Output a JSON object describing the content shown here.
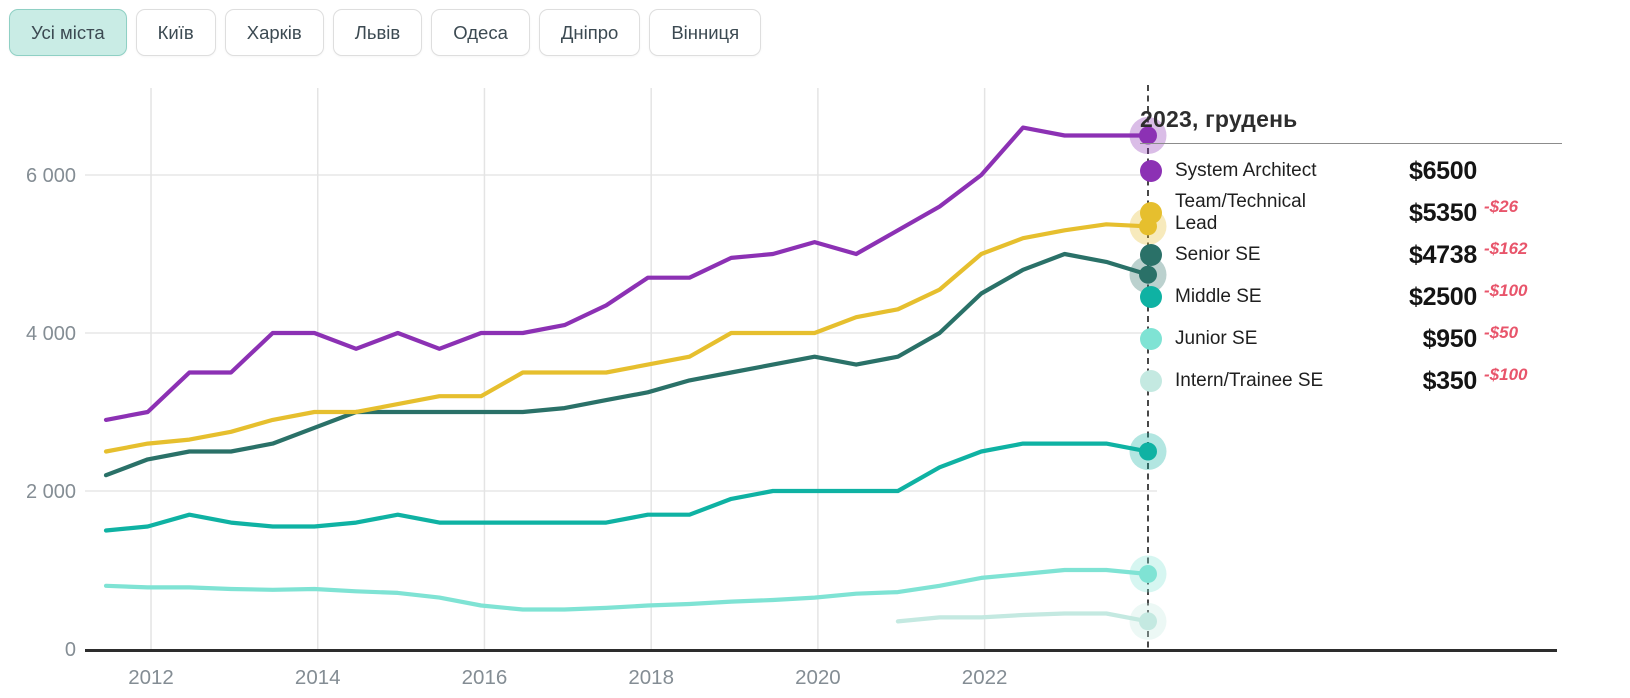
{
  "tabs": {
    "items": [
      {
        "label": "Усі міста",
        "selected": true
      },
      {
        "label": "Київ",
        "selected": false
      },
      {
        "label": "Харків",
        "selected": false
      },
      {
        "label": "Львів",
        "selected": false
      },
      {
        "label": "Одеса",
        "selected": false
      },
      {
        "label": "Дніпро",
        "selected": false
      },
      {
        "label": "Вінниця",
        "selected": false
      }
    ]
  },
  "legend": {
    "title": "2023, грудень",
    "items": [
      {
        "name": "System Architect",
        "value": "$6500",
        "delta": "",
        "color": "#8c31b4"
      },
      {
        "name": "Team/Technical Lead",
        "value": "$5350",
        "delta": "-$26",
        "color": "#e6bf2e"
      },
      {
        "name": "Senior SE",
        "value": "$4738",
        "delta": "-$162",
        "color": "#2a7168"
      },
      {
        "name": "Middle SE",
        "value": "$2500",
        "delta": "-$100",
        "color": "#0fb2a3"
      },
      {
        "name": "Junior SE",
        "value": "$950",
        "delta": "-$50",
        "color": "#7fe3d4"
      },
      {
        "name": "Intern/Trainee SE",
        "value": "$350",
        "delta": "-$100",
        "color": "#c4e9e1"
      }
    ]
  },
  "chart_data": {
    "type": "line",
    "title": "",
    "xlabel": "",
    "ylabel": "",
    "ylim": [
      0,
      7000
    ],
    "grid": true,
    "legend_position": "right",
    "cursor_label": "2023, грудень",
    "categories": [
      "2011-06",
      "2011-12",
      "2012-06",
      "2012-12",
      "2013-06",
      "2013-12",
      "2014-06",
      "2014-12",
      "2015-06",
      "2015-12",
      "2016-06",
      "2016-12",
      "2017-06",
      "2017-12",
      "2018-06",
      "2018-12",
      "2019-06",
      "2019-12",
      "2020-06",
      "2020-12",
      "2021-06",
      "2021-12",
      "2022-06",
      "2022-12",
      "2023-06",
      "2023-12"
    ],
    "x_ticks": [
      {
        "label": "2012",
        "year": 2012
      },
      {
        "label": "2014",
        "year": 2014
      },
      {
        "label": "2016",
        "year": 2016
      },
      {
        "label": "2018",
        "year": 2018
      },
      {
        "label": "2020",
        "year": 2020
      },
      {
        "label": "2022",
        "year": 2022
      }
    ],
    "y_ticks": [
      {
        "label": "0",
        "value": 0
      },
      {
        "label": "2 000",
        "value": 2000
      },
      {
        "label": "4 000",
        "value": 4000
      },
      {
        "label": "6 000",
        "value": 6000
      }
    ],
    "series": [
      {
        "name": "Intern/Trainee SE",
        "color": "#c4e9e1",
        "values": [
          null,
          null,
          null,
          null,
          null,
          null,
          null,
          null,
          null,
          null,
          null,
          null,
          null,
          null,
          null,
          null,
          null,
          null,
          null,
          350,
          400,
          400,
          430,
          450,
          450,
          350
        ]
      },
      {
        "name": "Junior SE",
        "color": "#7fe3d4",
        "values": [
          800,
          780,
          780,
          760,
          750,
          760,
          730,
          710,
          650,
          550,
          500,
          500,
          520,
          550,
          570,
          600,
          620,
          650,
          700,
          720,
          800,
          900,
          950,
          1000,
          1000,
          950
        ]
      },
      {
        "name": "Middle SE",
        "color": "#0fb2a3",
        "values": [
          1500,
          1550,
          1700,
          1600,
          1550,
          1550,
          1600,
          1700,
          1600,
          1600,
          1600,
          1600,
          1600,
          1700,
          1700,
          1900,
          2000,
          2000,
          2000,
          2000,
          2300,
          2500,
          2600,
          2600,
          2600,
          2500
        ]
      },
      {
        "name": "Senior SE",
        "color": "#2a7168",
        "values": [
          2200,
          2400,
          2500,
          2500,
          2600,
          2800,
          3000,
          3000,
          3000,
          3000,
          3000,
          3050,
          3150,
          3250,
          3400,
          3500,
          3600,
          3700,
          3600,
          3700,
          4000,
          4500,
          4800,
          5000,
          4900,
          4738
        ]
      },
      {
        "name": "Team/Technical Lead",
        "color": "#e6bf2e",
        "values": [
          2500,
          2600,
          2650,
          2750,
          2900,
          3000,
          3000,
          3100,
          3200,
          3200,
          3500,
          3500,
          3500,
          3600,
          3700,
          4000,
          4000,
          4000,
          4200,
          4300,
          4550,
          5000,
          5200,
          5300,
          5376,
          5350
        ]
      },
      {
        "name": "System Architect",
        "color": "#8c31b4",
        "values": [
          2900,
          3000,
          3500,
          3500,
          4000,
          4000,
          3800,
          4000,
          3800,
          4000,
          4000,
          4100,
          4350,
          4700,
          4700,
          4950,
          5000,
          5150,
          5000,
          5300,
          5600,
          6000,
          6600,
          6500,
          6500,
          6500
        ]
      }
    ]
  }
}
